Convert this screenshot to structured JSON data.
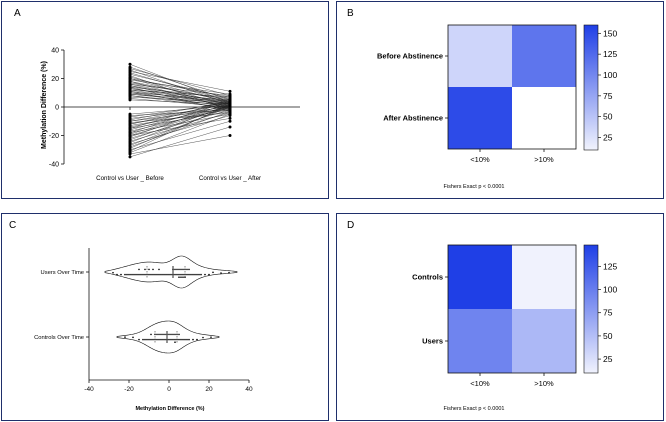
{
  "panels": {
    "a": "A",
    "b": "B",
    "c": "C",
    "d": "D"
  },
  "colors": {
    "border": "#1f2f6b",
    "heat_max": "#1f3fe6",
    "heat_min": "#ffffff"
  },
  "chart_data": [
    {
      "panel": "A",
      "type": "line",
      "ylabel": "Methylation Difference (%)",
      "xlabel": "",
      "categories": [
        "Control vs User _ Before",
        "Control vs User _ After"
      ],
      "ylim": [
        -40,
        40
      ],
      "yticks": [
        40,
        20,
        0,
        -20,
        -40
      ],
      "pairs": [
        [
          30,
          3
        ],
        [
          28,
          5
        ],
        [
          27,
          8
        ],
        [
          26,
          2
        ],
        [
          25,
          11
        ],
        [
          24,
          4
        ],
        [
          23,
          6
        ],
        [
          22,
          -2
        ],
        [
          21,
          3
        ],
        [
          20,
          7
        ],
        [
          20,
          1
        ],
        [
          19,
          9
        ],
        [
          18,
          4
        ],
        [
          18,
          -1
        ],
        [
          17,
          5
        ],
        [
          16,
          2
        ],
        [
          16,
          8
        ],
        [
          15,
          3
        ],
        [
          15,
          0
        ],
        [
          14,
          6
        ],
        [
          14,
          -3
        ],
        [
          13,
          2
        ],
        [
          13,
          4
        ],
        [
          12,
          1
        ],
        [
          12,
          7
        ],
        [
          11,
          3
        ],
        [
          11,
          -2
        ],
        [
          10,
          5
        ],
        [
          10,
          0
        ],
        [
          9,
          2
        ],
        [
          9,
          4
        ],
        [
          8,
          1
        ],
        [
          8,
          -1
        ],
        [
          7,
          3
        ],
        [
          6,
          0
        ],
        [
          5,
          2
        ],
        [
          -5,
          1
        ],
        [
          -6,
          -2
        ],
        [
          -7,
          3
        ],
        [
          -8,
          0
        ],
        [
          -9,
          4
        ],
        [
          -10,
          -1
        ],
        [
          -10,
          2
        ],
        [
          -11,
          -4
        ],
        [
          -12,
          1
        ],
        [
          -12,
          3
        ],
        [
          -13,
          -2
        ],
        [
          -14,
          0
        ],
        [
          -15,
          5
        ],
        [
          -15,
          -3
        ],
        [
          -16,
          2
        ],
        [
          -17,
          -1
        ],
        [
          -18,
          4
        ],
        [
          -18,
          -5
        ],
        [
          -19,
          1
        ],
        [
          -20,
          0
        ],
        [
          -20,
          -8
        ],
        [
          -21,
          3
        ],
        [
          -22,
          -2
        ],
        [
          -23,
          1
        ],
        [
          -24,
          -4
        ],
        [
          -25,
          2
        ],
        [
          -26,
          -6
        ],
        [
          -27,
          0
        ],
        [
          -28,
          -3
        ],
        [
          -29,
          1
        ],
        [
          -30,
          -10
        ],
        [
          -31,
          2
        ],
        [
          -32,
          -5
        ],
        [
          -33,
          -20
        ],
        [
          -35,
          -14
        ]
      ]
    },
    {
      "panel": "B",
      "type": "heatmap",
      "rows": [
        "Before Abstinence",
        "After Abstinence"
      ],
      "columns": [
        "<10%",
        ">10%"
      ],
      "values": [
        [
          35,
          115
        ],
        [
          150,
          0
        ]
      ],
      "colorbar_ticks": [
        150,
        125,
        100,
        75,
        50,
        25
      ],
      "colorbar_range": [
        10,
        160
      ],
      "caption": "Fishers Exact p < 0.0001"
    },
    {
      "panel": "C",
      "type": "scatter",
      "xlabel": "Methylation Difference (%)",
      "categories": [
        "Users Over Time",
        "Controls Over Time"
      ],
      "xlim": [
        -40,
        40
      ],
      "xticks": [
        -40,
        -20,
        0,
        20,
        40
      ],
      "distributions": [
        {
          "category": "Users Over Time",
          "points": [
            -28,
            -26,
            -24,
            -22,
            -21,
            -20,
            -19,
            -18,
            -17,
            -16,
            -15,
            -15,
            -14,
            -13,
            -12,
            -12,
            -11,
            -10,
            -10,
            -9,
            -8,
            -8,
            -7,
            -6,
            -5,
            -5,
            -4,
            -3,
            -2,
            -1,
            0,
            1,
            2,
            2,
            3,
            3,
            4,
            4,
            5,
            5,
            5,
            6,
            6,
            6,
            7,
            7,
            7,
            8,
            8,
            8,
            9,
            9,
            10,
            10,
            11,
            12,
            13,
            14,
            15,
            16,
            18,
            20,
            22,
            26,
            30
          ]
        },
        {
          "category": "Controls Over Time",
          "points": [
            -22,
            -18,
            -15,
            -13,
            -12,
            -11,
            -10,
            -9,
            -9,
            -8,
            -7,
            -7,
            -6,
            -6,
            -5,
            -5,
            -4,
            -4,
            -3,
            -3,
            -2,
            -2,
            -1,
            -1,
            0,
            0,
            1,
            1,
            2,
            2,
            3,
            3,
            3,
            4,
            4,
            5,
            5,
            6,
            7,
            8,
            9,
            10,
            12,
            14,
            17,
            21
          ]
        }
      ]
    },
    {
      "panel": "D",
      "type": "heatmap",
      "rows": [
        "Controls",
        "Users"
      ],
      "columns": [
        "<10%",
        ">10%"
      ],
      "values": [
        [
          148,
          10
        ],
        [
          95,
          55
        ]
      ],
      "colorbar_ticks": [
        125,
        100,
        75,
        50,
        25
      ],
      "colorbar_range": [
        10,
        148
      ],
      "caption": "Fishers Exact p < 0.0001"
    }
  ]
}
